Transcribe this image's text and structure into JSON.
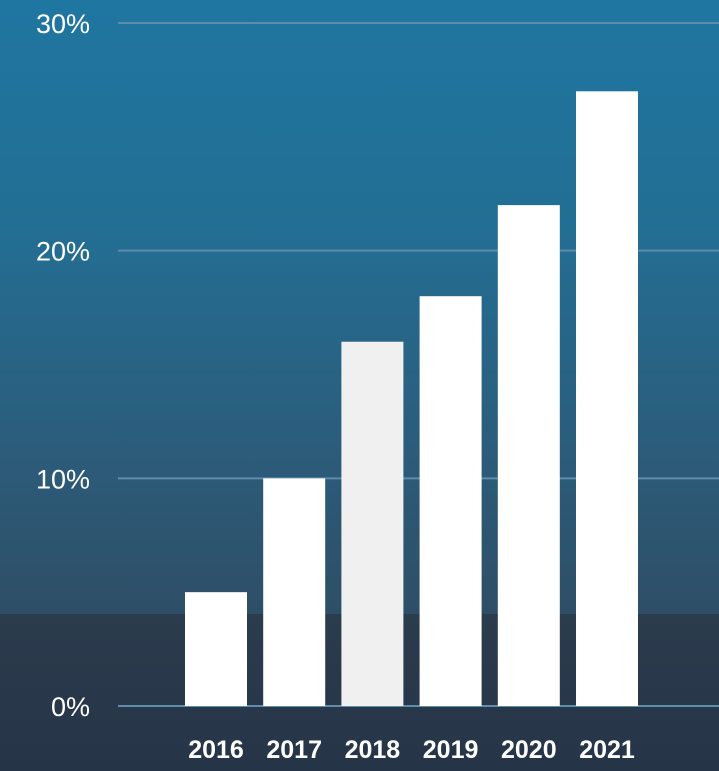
{
  "chart_data": {
    "type": "bar",
    "categories": [
      "2016",
      "2017",
      "2018",
      "2019",
      "2020",
      "2021"
    ],
    "values": [
      5,
      10,
      16,
      18,
      22,
      27
    ],
    "ylim": [
      0,
      30
    ],
    "yticks": [
      0,
      10,
      20,
      30
    ],
    "ytick_labels": [
      "0%",
      "10%",
      "20%",
      "30%"
    ],
    "title": "",
    "xlabel": "",
    "ylabel": "",
    "grid": true,
    "bar_color": "#ffffff",
    "highlight_bar_color": "#f0f0f0",
    "highlight_index": 2,
    "gridline_color": "#5e8cab"
  }
}
